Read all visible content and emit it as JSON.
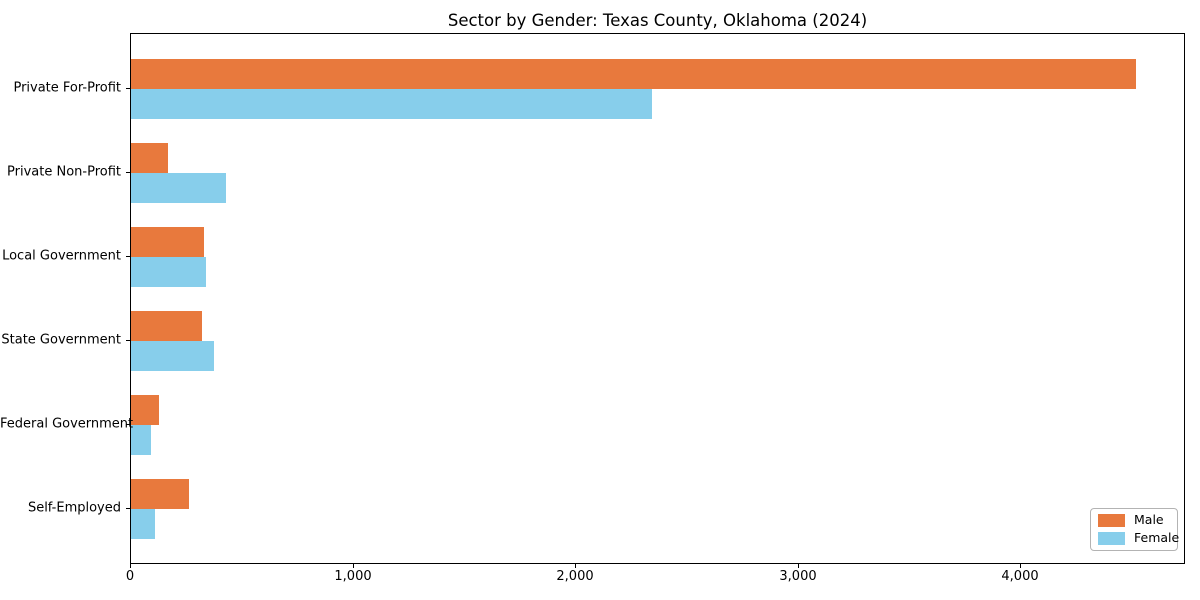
{
  "chart_data": {
    "type": "bar",
    "orientation": "horizontal",
    "title": "Sector by Gender: Texas County, Oklahoma (2024)",
    "categories": [
      "Private For-Profit",
      "Private Non-Profit",
      "Local Government",
      "State Government",
      "Federal Government",
      "Self-Employed"
    ],
    "series": [
      {
        "name": "Male",
        "color": "#e8793d",
        "values": [
          4515,
          167,
          326,
          317,
          128,
          259
        ]
      },
      {
        "name": "Female",
        "color": "#87ceeb",
        "values": [
          2340,
          428,
          338,
          373,
          91,
          110
        ]
      }
    ],
    "xlabel": "",
    "ylabel": "",
    "xlim": [
      0,
      4741
    ],
    "x_ticks": [
      0,
      1000,
      2000,
      3000,
      4000
    ],
    "x_tick_labels": [
      "0",
      "1,000",
      "2,000",
      "3,000",
      "4,000"
    ],
    "grid": false,
    "legend": {
      "position": "lower-right",
      "entries": [
        "Male",
        "Female"
      ]
    }
  }
}
